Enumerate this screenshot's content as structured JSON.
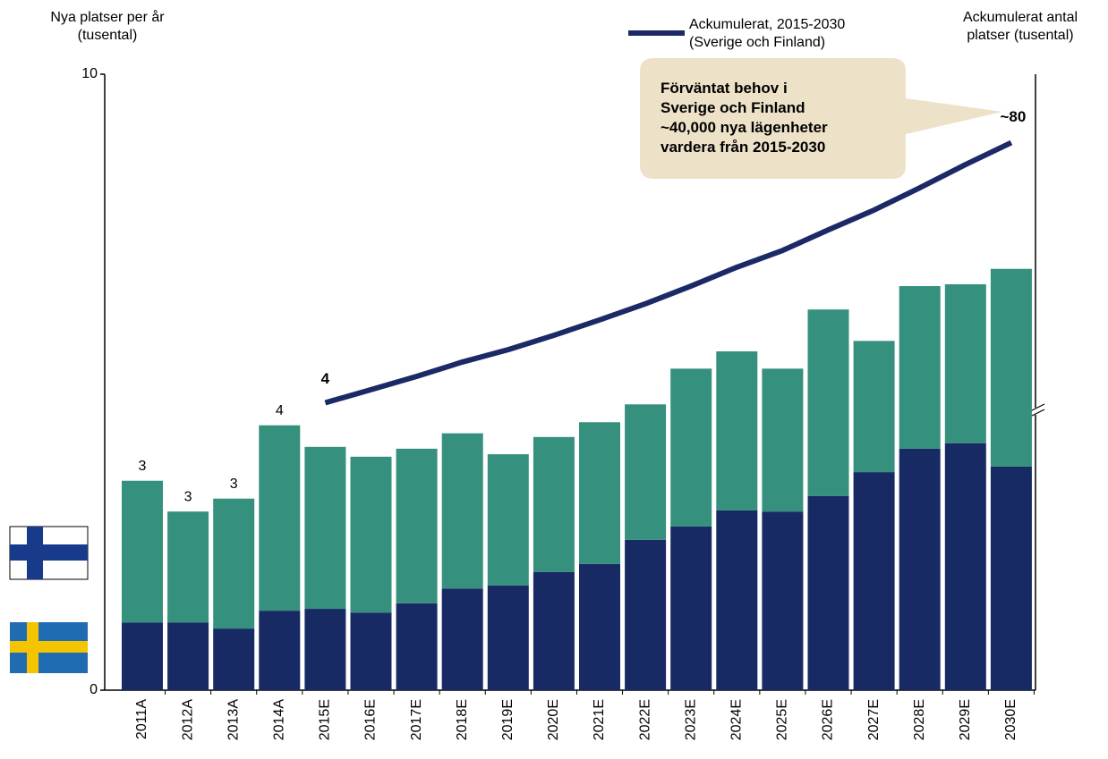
{
  "chart_data": {
    "type": "bar",
    "y_title": "Nya platser per år\n(tusental)",
    "y2_title": "Ackumulerat antal\nplatser (tusental)",
    "annotation": "Förväntat behov i\nSverige och Finland\n~40,000 nya lägenheter\nvardera från 2015-2030",
    "categories": [
      "2011A",
      "2012A",
      "2013A",
      "2014A",
      "2015E",
      "2016E",
      "2017E",
      "2018E",
      "2019E",
      "2020E",
      "2021E",
      "2022E",
      "2023E",
      "2024E",
      "2025E",
      "2026E",
      "2027E",
      "2028E",
      "2029E",
      "2030E"
    ],
    "series": [
      {
        "type": "bar",
        "color": "#172a64",
        "values": [
          1.1,
          1.1,
          1.0,
          1.29,
          1.32,
          1.26,
          1.41,
          1.65,
          1.7,
          1.92,
          2.05,
          2.44,
          2.66,
          2.92,
          2.9,
          3.15,
          3.54,
          3.92,
          4.01,
          3.63
        ]
      },
      {
        "type": "bar",
        "color": "#36907e",
        "values": [
          2.3,
          1.8,
          2.11,
          3.01,
          2.63,
          2.53,
          2.51,
          2.52,
          2.13,
          2.19,
          2.3,
          2.2,
          2.56,
          2.58,
          2.32,
          3.03,
          2.13,
          2.64,
          2.58,
          3.21
        ]
      },
      {
        "type": "line",
        "axis": "y2",
        "name": "Ackumulerat, 2015-2030\n(Sverige och Finland)",
        "color": "#1b2a66",
        "values": [
          null,
          null,
          null,
          null,
          4,
          7.8,
          11.7,
          15.9,
          19.5,
          23.7,
          28.2,
          32.9,
          38.1,
          43.6,
          48.5,
          54.5,
          60.3,
          66.8,
          73.6,
          80
        ],
        "value_labels": [
          null,
          null,
          null,
          null,
          "4",
          null,
          null,
          null,
          null,
          null,
          null,
          null,
          null,
          null,
          null,
          null,
          null,
          null,
          null,
          "~80"
        ]
      }
    ],
    "total_labels": [
      "3",
      "3",
      "3",
      "4"
    ],
    "ylim": [
      0,
      10
    ],
    "yticks": [
      0,
      10
    ],
    "y2lim": [
      -80,
      100
    ],
    "y2_break": true
  }
}
